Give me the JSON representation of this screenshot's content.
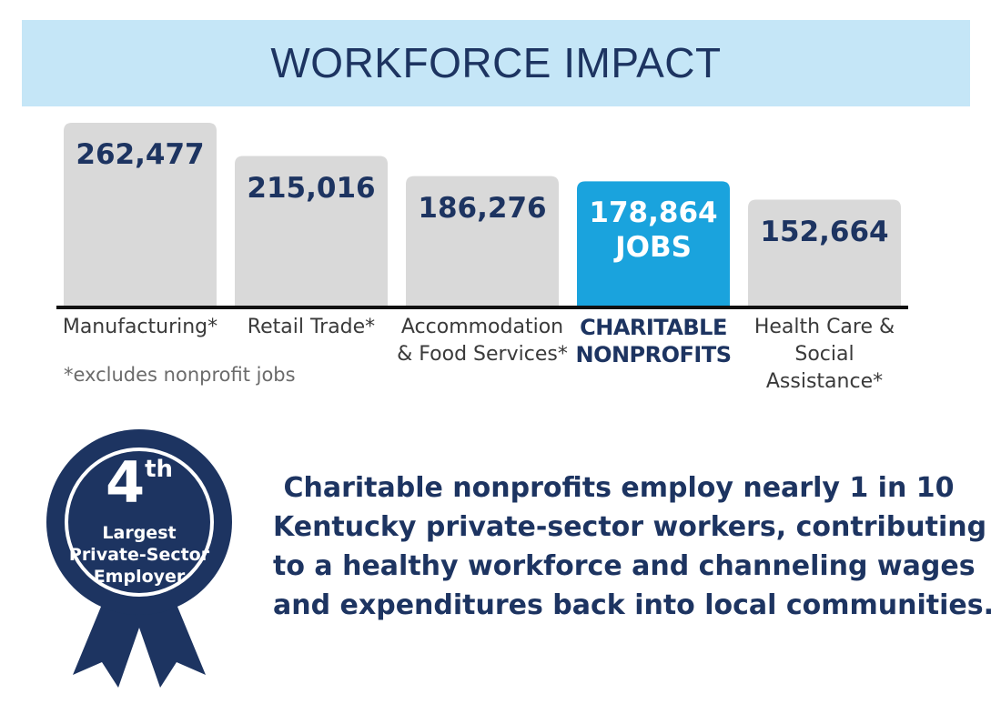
{
  "chart_data": {
    "type": "bar",
    "title": "WORKFORCE IMPACT",
    "categories": [
      "Manufacturing*",
      "Retail Trade*",
      "Accommodation & Food Services*",
      "CHARITABLE NONPROFITS",
      "Health Care & Social Assistance*"
    ],
    "values": [
      262477,
      215016,
      186276,
      178864,
      152664
    ],
    "value_labels": [
      "262,477",
      "215,016",
      "186,276",
      "178,864",
      "152,664"
    ],
    "highlight_note": "JOBS",
    "colors": [
      "#d9d9d9",
      "#d9d9d9",
      "#d9d9d9",
      "#1aa3dd",
      "#d9d9d9"
    ],
    "footnote": "*excludes nonprofit jobs"
  },
  "badge": {
    "rank": "4",
    "suffix": "th",
    "lines": [
      "Largest",
      "Private-Sector",
      "Employer"
    ]
  },
  "statement": [
    "Charitable nonprofits employ nearly 1 in 10",
    "Kentucky private-sector workers, contributing",
    "to a healthy workforce and channeling wages",
    "and expenditures back into local communities."
  ]
}
